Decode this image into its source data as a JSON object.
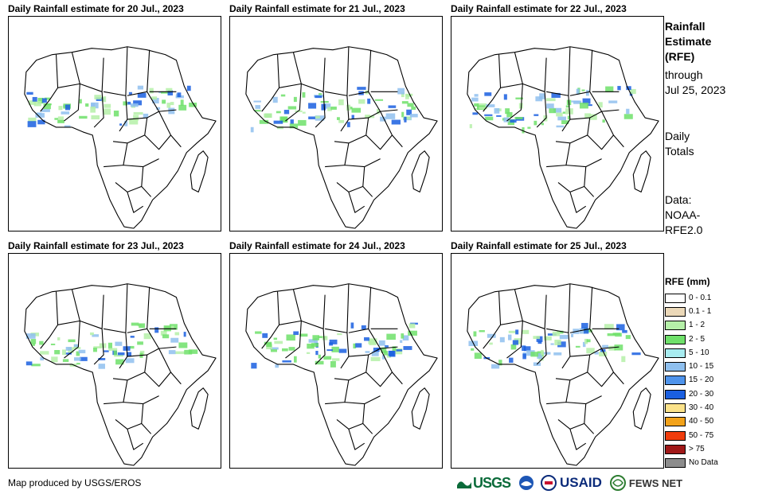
{
  "panels": [
    {
      "title": "Daily Rainfall estimate for 20 Jul., 2023"
    },
    {
      "title": "Daily Rainfall estimate for 21 Jul., 2023"
    },
    {
      "title": "Daily Rainfall estimate for 22 Jul., 2023"
    },
    {
      "title": "Daily Rainfall estimate for 23 Jul., 2023"
    },
    {
      "title": "Daily Rainfall estimate for 24 Jul., 2023"
    },
    {
      "title": "Daily Rainfall estimate for 25 Jul., 2023"
    }
  ],
  "sidebar": {
    "title_line1": "Rainfall",
    "title_line2": "Estimate",
    "title_line3": "(RFE)",
    "through_label": "through",
    "through_date": "Jul 25, 2023",
    "totals_line1": "Daily",
    "totals_line2": "Totals",
    "data_line1": "Data:",
    "data_line2": "NOAA-",
    "data_line3": "RFE2.0"
  },
  "legend": {
    "title": "RFE (mm)",
    "items": [
      {
        "label": "0 - 0.1",
        "color": "#ffffff"
      },
      {
        "label": "0.1 - 1",
        "color": "#ebd8b8"
      },
      {
        "label": "1 - 2",
        "color": "#b5f0a8"
      },
      {
        "label": "2 - 5",
        "color": "#6fe06a"
      },
      {
        "label": "5 - 10",
        "color": "#a8ecf0"
      },
      {
        "label": "10 - 15",
        "color": "#8fc0ef"
      },
      {
        "label": "15 - 20",
        "color": "#4f94ec"
      },
      {
        "label": "20 - 30",
        "color": "#1a5fe0"
      },
      {
        "label": "30 - 40",
        "color": "#fbe28a"
      },
      {
        "label": "40 - 50",
        "color": "#f2a21a"
      },
      {
        "label": "50 - 75",
        "color": "#f03c0c"
      },
      {
        "label": "> 75",
        "color": "#a01818"
      },
      {
        "label": "No Data",
        "color": "#8c8c8c"
      }
    ]
  },
  "footer": {
    "credit": "Map produced by USGS/EROS",
    "logos": {
      "usgs": "USGS",
      "usaid": "USAID",
      "fews": "FEWS NET"
    }
  }
}
